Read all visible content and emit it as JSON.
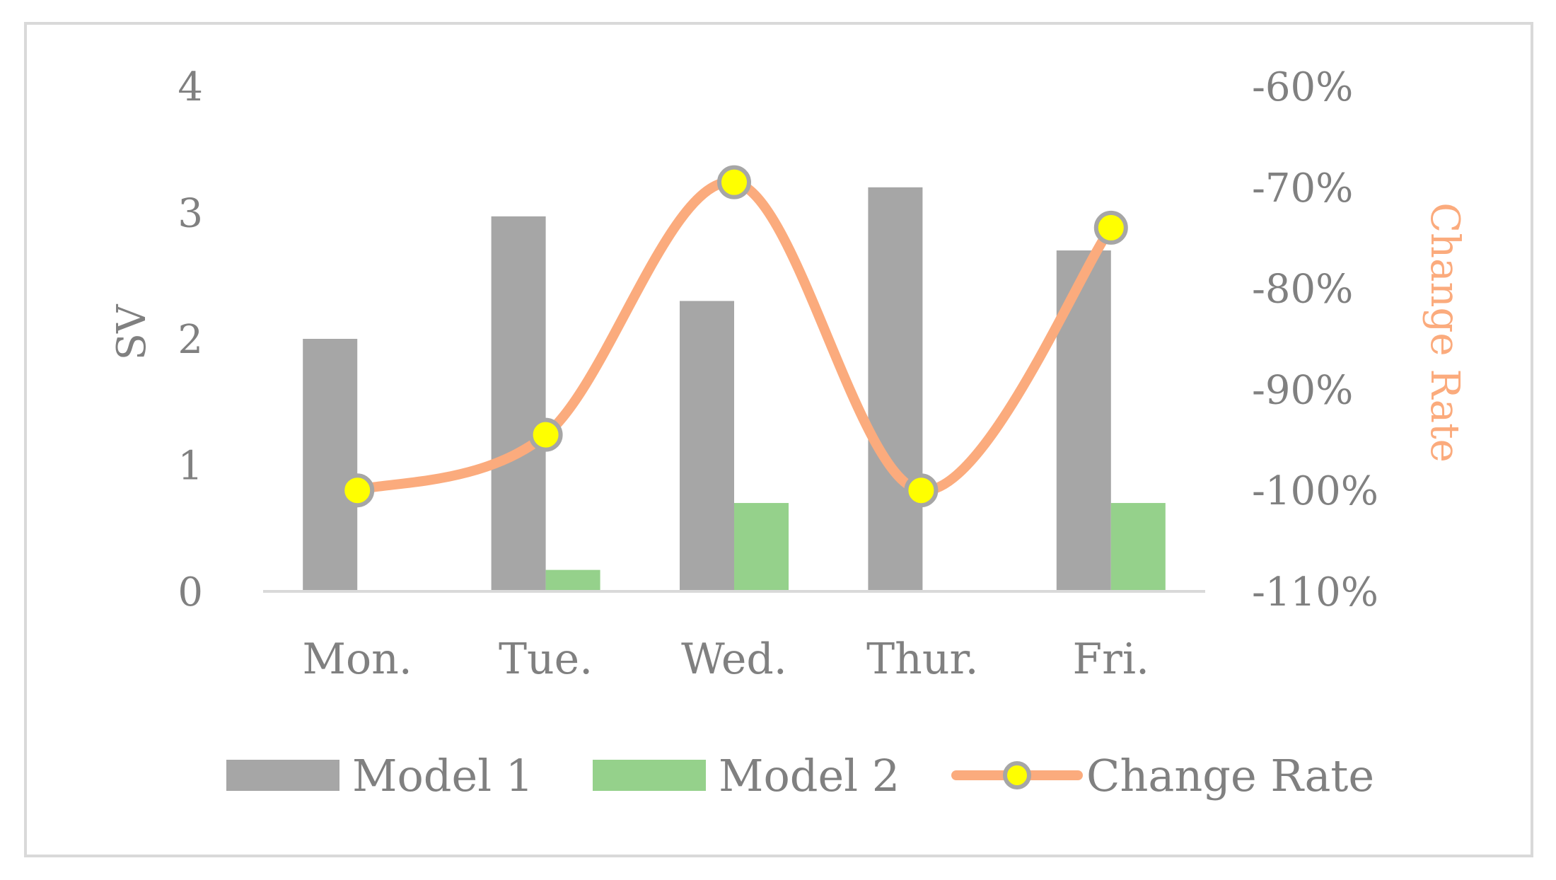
{
  "chart_data": {
    "type": "bar",
    "categories": [
      "Mon.",
      "Tue.",
      "Wed.",
      "Thur.",
      "Fri."
    ],
    "series": [
      {
        "name": "Model 1",
        "type": "bar",
        "axis": "left",
        "color": "#a6a6a6",
        "values": [
          2.0,
          2.97,
          2.3,
          3.2,
          2.7
        ]
      },
      {
        "name": "Model 2",
        "type": "bar",
        "axis": "left",
        "color": "#95d18b",
        "values": [
          0,
          0.17,
          0.7,
          0,
          0.7
        ]
      },
      {
        "name": "Change Rate",
        "type": "line",
        "axis": "right",
        "color": "#fbab7d",
        "marker_color": "#ffff00",
        "marker_border": "#a6a6a6",
        "values": [
          -100,
          -94.5,
          -69.5,
          -100,
          -74
        ]
      }
    ],
    "ylabel": "SV",
    "y2label": "Change Rate",
    "ylim": [
      0,
      4
    ],
    "y2lim": [
      -110,
      -60
    ],
    "yticks": [
      "0",
      "1",
      "2",
      "3",
      "4"
    ],
    "y2ticks": [
      "-110%",
      "-100%",
      "-90%",
      "-80%",
      "-70%",
      "-60%"
    ],
    "legend": {
      "position": "bottom",
      "entries": [
        "Model 1",
        "Model 2",
        "Change Rate"
      ]
    },
    "grid": false,
    "colors": {
      "y2label": "#fbab7d",
      "text": "#808080",
      "axis_line": "#d9d9d9",
      "border": "#d9d9d9"
    }
  }
}
